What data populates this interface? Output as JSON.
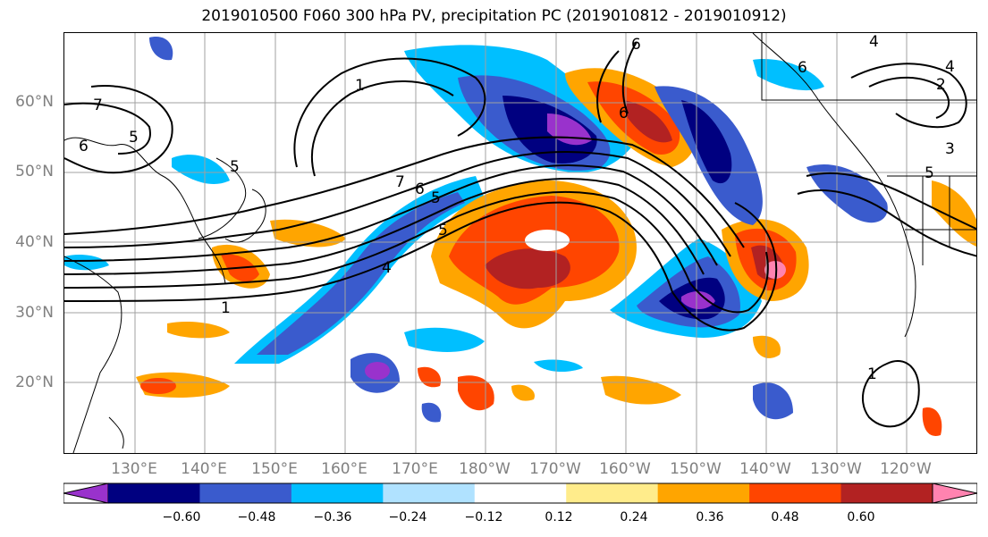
{
  "title": "2019010500 F060 300 hPa PV, precipitation PC (2019010812 - 2019010912)",
  "lat_labels": [
    "60°N",
    "50°N",
    "40°N",
    "30°N",
    "20°N"
  ],
  "lon_labels": [
    "130°E",
    "140°E",
    "150°E",
    "160°E",
    "170°E",
    "180°W",
    "170°W",
    "160°W",
    "150°W",
    "140°W",
    "130°W",
    "120°W"
  ],
  "colorbar": {
    "ticks": [
      "−0.60",
      "−0.48",
      "−0.36",
      "−0.24",
      "−0.12",
      "0.12",
      "0.24",
      "0.36",
      "0.48",
      "0.60"
    ],
    "colors": [
      "#9932cc",
      "#000080",
      "#3a5bcd",
      "#00bfff",
      "#b0e2ff",
      "#ffffff",
      "#ffec8b",
      "#ffa500",
      "#ff4500",
      "#b22222",
      "#ff83b0"
    ]
  },
  "contour_labels": [
    "7",
    "6",
    "5",
    "6",
    "5",
    "7",
    "1",
    "6",
    "6",
    "5",
    "4",
    "5",
    "1",
    "6",
    "4",
    "2",
    "3",
    "5",
    "1",
    "4"
  ]
}
